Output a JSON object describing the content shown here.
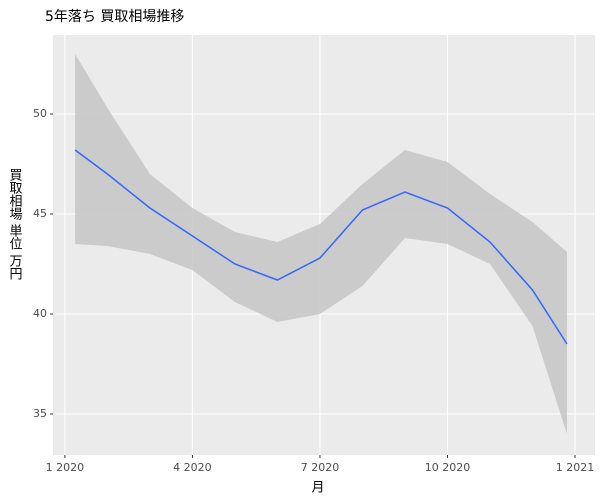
{
  "chart_data": {
    "type": "line",
    "title": "5年落ち 買取相場推移",
    "x_label": "月",
    "y_label": "買取相場 単位 万円",
    "x": [
      0.24,
      1,
      2,
      3,
      4,
      5,
      6,
      7,
      8,
      9,
      10,
      11,
      11.81
    ],
    "values": [
      48.2,
      47.0,
      45.3,
      43.9,
      42.5,
      41.7,
      42.8,
      45.2,
      46.1,
      45.3,
      43.6,
      41.2,
      38.5
    ],
    "ci_upper": [
      53.0,
      50.3,
      47.0,
      45.3,
      44.1,
      43.6,
      44.5,
      46.5,
      48.2,
      47.6,
      46.0,
      44.6,
      43.1
    ],
    "ci_lower": [
      43.5,
      43.4,
      43.0,
      42.2,
      40.6,
      39.6,
      40.0,
      41.4,
      43.8,
      43.5,
      42.5,
      39.4,
      34.0
    ],
    "color": "#3366ff",
    "band_color": "#c6c6c6",
    "xlim": [
      -0.28,
      12.47
    ],
    "xticks": [
      {
        "value": 0,
        "label": "1 2020"
      },
      {
        "value": 3,
        "label": "4 2020"
      },
      {
        "value": 6,
        "label": "7 2020"
      },
      {
        "value": 9,
        "label": "10 2020"
      },
      {
        "value": 12,
        "label": "1 2021"
      }
    ],
    "ylim": [
      32.95,
      53.95
    ],
    "yticks": [
      35,
      40,
      45,
      50
    ],
    "grid": true
  }
}
